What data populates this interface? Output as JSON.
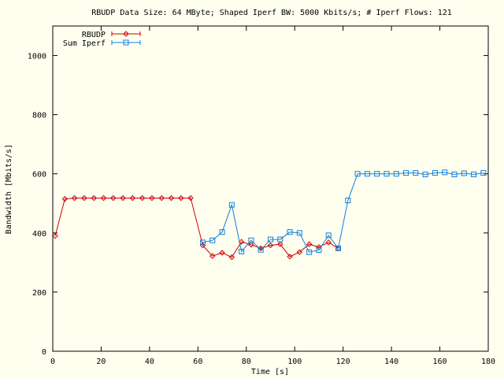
{
  "chart_data": {
    "type": "line",
    "title": "RBUDP Data Size: 64 MByte; Shaped Iperf BW: 5000 Kbits/s; # Iperf Flows: 121",
    "xlabel": "Time [s]",
    "ylabel": "Bandwidth [Mbits/s]",
    "xlim": [
      0,
      180
    ],
    "ylim": [
      0,
      1100
    ],
    "xticks": [
      0,
      20,
      40,
      60,
      80,
      100,
      120,
      140,
      160,
      180
    ],
    "yticks": [
      0,
      200,
      400,
      600,
      800,
      1000
    ],
    "grid": false,
    "legend_position": "top-left",
    "series": [
      {
        "name": "RBUDP",
        "color": "#cc0000",
        "marker": "diamond",
        "points": [
          [
            1,
            390
          ],
          [
            5,
            515
          ],
          [
            9,
            518
          ],
          [
            13,
            518
          ],
          [
            17,
            518
          ],
          [
            21,
            518
          ],
          [
            25,
            518
          ],
          [
            29,
            518
          ],
          [
            33,
            518
          ],
          [
            37,
            518
          ],
          [
            41,
            518
          ],
          [
            45,
            518
          ],
          [
            49,
            518
          ],
          [
            53,
            518
          ],
          [
            57,
            518
          ],
          [
            62,
            358
          ],
          [
            66,
            322
          ],
          [
            70,
            333
          ],
          [
            74,
            318
          ],
          [
            78,
            370
          ],
          [
            82,
            360
          ],
          [
            86,
            348
          ],
          [
            90,
            358
          ],
          [
            94,
            362
          ],
          [
            98,
            320
          ],
          [
            102,
            335
          ],
          [
            106,
            362
          ],
          [
            110,
            352
          ],
          [
            114,
            368
          ],
          [
            118,
            348
          ]
        ]
      },
      {
        "name": "Sum Iperf",
        "color": "#1080d8",
        "marker": "square",
        "points": [
          [
            62,
            368
          ],
          [
            66,
            375
          ],
          [
            70,
            403
          ],
          [
            74,
            495
          ],
          [
            78,
            337
          ],
          [
            82,
            375
          ],
          [
            86,
            343
          ],
          [
            90,
            378
          ],
          [
            94,
            378
          ],
          [
            98,
            403
          ],
          [
            102,
            400
          ],
          [
            106,
            335
          ],
          [
            110,
            342
          ],
          [
            114,
            392
          ],
          [
            118,
            348
          ],
          [
            122,
            510
          ],
          [
            126,
            600
          ],
          [
            130,
            600
          ],
          [
            134,
            600
          ],
          [
            138,
            600
          ],
          [
            142,
            600
          ],
          [
            146,
            603
          ],
          [
            150,
            603
          ],
          [
            154,
            598
          ],
          [
            158,
            603
          ],
          [
            162,
            605
          ],
          [
            166,
            598
          ],
          [
            170,
            602
          ],
          [
            174,
            598
          ],
          [
            178,
            603
          ]
        ]
      }
    ]
  }
}
